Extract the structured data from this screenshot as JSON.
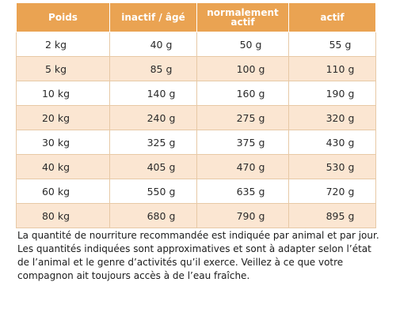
{
  "table": {
    "headers": [
      "Poids",
      "inactif / âgé",
      "normalement actif",
      "actif"
    ],
    "rows": [
      [
        "2 kg",
        "40 g",
        "50 g",
        "55 g"
      ],
      [
        "5 kg",
        "85 g",
        "100 g",
        "110 g"
      ],
      [
        "10 kg",
        "140 g",
        "160 g",
        "190 g"
      ],
      [
        "20 kg",
        "240 g",
        "275 g",
        "320 g"
      ],
      [
        "30 kg",
        "325 g",
        "375 g",
        "430 g"
      ],
      [
        "40 kg",
        "405 g",
        "470 g",
        "530 g"
      ],
      [
        "60 kg",
        "550 g",
        "635 g",
        "720 g"
      ],
      [
        "80 kg",
        "680 g",
        "790 g",
        "895 g"
      ]
    ],
    "colors": {
      "header_background": "#eaa352",
      "header_text": "#ffffff",
      "row_alternate": "#fbe6d2",
      "row_plain": "#ffffff"
    }
  },
  "note": "La quantité de nourriture recommandée est indiquée par animal et par jour. Les quantités indiquées sont approximatives et sont à adapter selon l’état de l’animal et le genre d’activités qu’il exerce. Veillez à ce que votre compagnon ait toujours accès à de l’eau fraîche."
}
